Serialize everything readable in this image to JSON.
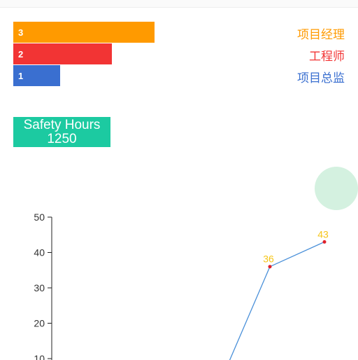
{
  "roles": [
    {
      "label": "项目经理",
      "count": 3,
      "color": "#ff9a00"
    },
    {
      "label": "工程师",
      "count": 2,
      "color": "#f23434"
    },
    {
      "label": "项目总监",
      "count": 1,
      "color": "#3a6fd0"
    }
  ],
  "safety": {
    "label": "Safety Hours",
    "value": "1250"
  },
  "chart_data": {
    "type": "line",
    "y_ticks": [
      "50",
      "40",
      "30",
      "20",
      "10"
    ],
    "ylim": [
      10,
      50
    ],
    "points": [
      {
        "label": "36",
        "value": 36
      },
      {
        "label": "43",
        "value": 43
      }
    ],
    "line_color": "#4a90d9",
    "point_color": "#e0202a",
    "label_color": "#f5c518"
  }
}
